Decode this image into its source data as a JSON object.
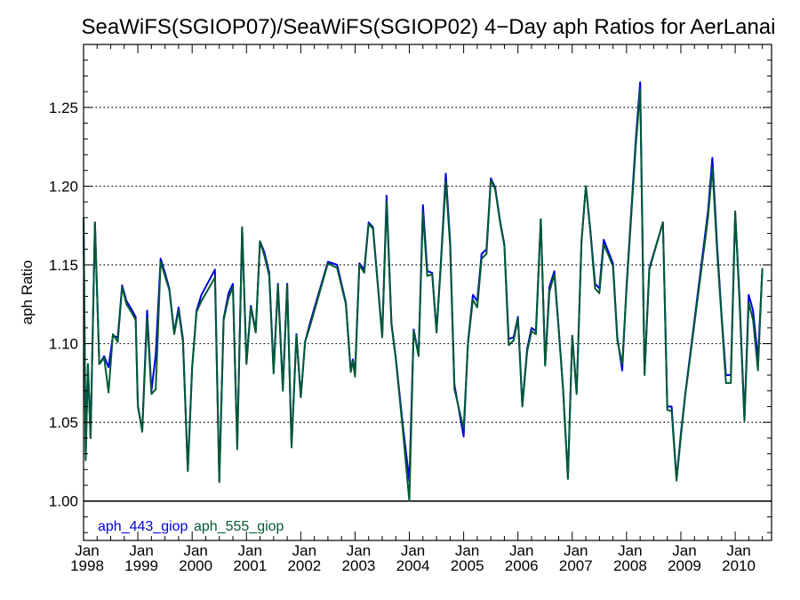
{
  "chart_data": {
    "type": "line",
    "title": "SeaWiFS(SGIOP07)/SeaWiFS(SGIOP02) 4−Day aph Ratios for AerLanai",
    "xlabel": "",
    "ylabel": "aph Ratio",
    "xlim": [
      1998.0,
      2010.67
    ],
    "ylim": [
      0.975,
      1.29
    ],
    "x_ticks": [
      {
        "month": "Jan",
        "year": "1998",
        "x": 1998
      },
      {
        "month": "Jan",
        "year": "1999",
        "x": 1999
      },
      {
        "month": "Jan",
        "year": "2000",
        "x": 2000
      },
      {
        "month": "Jan",
        "year": "2001",
        "x": 2001
      },
      {
        "month": "Jan",
        "year": "2002",
        "x": 2002
      },
      {
        "month": "Jan",
        "year": "2003",
        "x": 2003
      },
      {
        "month": "Jan",
        "year": "2004",
        "x": 2004
      },
      {
        "month": "Jan",
        "year": "2005",
        "x": 2005
      },
      {
        "month": "Jan",
        "year": "2006",
        "x": 2006
      },
      {
        "month": "Jan",
        "year": "2007",
        "x": 2007
      },
      {
        "month": "Jan",
        "year": "2008",
        "x": 2008
      },
      {
        "month": "Jan",
        "year": "2009",
        "x": 2009
      },
      {
        "month": "Jan",
        "year": "2010",
        "x": 2010
      }
    ],
    "y_ticks": [
      "1.00",
      "1.05",
      "1.10",
      "1.15",
      "1.20",
      "1.25"
    ],
    "y_tick_values": [
      1.0,
      1.05,
      1.1,
      1.15,
      1.2,
      1.25
    ],
    "grid": true,
    "reference_line": 1.0,
    "legend_position": "bottom-left",
    "series": [
      {
        "name": "aph_443_giop",
        "color": "#0000e0",
        "points": [
          [
            1998.0,
            1.18
          ],
          [
            1998.04,
            1.03
          ],
          [
            1998.08,
            1.087
          ],
          [
            1998.13,
            1.04
          ],
          [
            1998.21,
            1.177
          ],
          [
            1998.29,
            1.087
          ],
          [
            1998.38,
            1.092
          ],
          [
            1998.46,
            1.085
          ],
          [
            1998.54,
            1.105
          ],
          [
            1998.63,
            1.104
          ],
          [
            1998.71,
            1.137
          ],
          [
            1998.79,
            1.127
          ],
          [
            1998.88,
            1.122
          ],
          [
            1998.96,
            1.117
          ],
          [
            1999.0,
            1.06
          ],
          [
            1999.08,
            1.045
          ],
          [
            1999.17,
            1.121
          ],
          [
            1999.25,
            1.07
          ],
          [
            1999.33,
            1.093
          ],
          [
            1999.42,
            1.154
          ],
          [
            1999.5,
            1.145
          ],
          [
            1999.58,
            1.135
          ],
          [
            1999.67,
            1.107
          ],
          [
            1999.75,
            1.123
          ],
          [
            1999.83,
            1.103
          ],
          [
            1999.92,
            1.02
          ],
          [
            2000.0,
            1.085
          ],
          [
            2000.08,
            1.121
          ],
          [
            2000.17,
            1.131
          ],
          [
            2000.42,
            1.147
          ],
          [
            2000.5,
            1.013
          ],
          [
            2000.58,
            1.116
          ],
          [
            2000.67,
            1.132
          ],
          [
            2000.75,
            1.138
          ],
          [
            2000.83,
            1.035
          ],
          [
            2000.92,
            1.173
          ],
          [
            2001.0,
            1.088
          ],
          [
            2001.08,
            1.124
          ],
          [
            2001.17,
            1.108
          ],
          [
            2001.25,
            1.165
          ],
          [
            2001.33,
            1.158
          ],
          [
            2001.42,
            1.145
          ],
          [
            2001.5,
            1.083
          ],
          [
            2001.58,
            1.138
          ],
          [
            2001.67,
            1.072
          ],
          [
            2001.75,
            1.138
          ],
          [
            2001.83,
            1.035
          ],
          [
            2001.92,
            1.106
          ],
          [
            2002.0,
            1.066
          ],
          [
            2002.08,
            1.101
          ],
          [
            2002.17,
            1.113
          ],
          [
            2002.5,
            1.152
          ],
          [
            2002.67,
            1.15
          ],
          [
            2002.83,
            1.126
          ],
          [
            2002.92,
            1.083
          ],
          [
            2002.96,
            1.09
          ],
          [
            2003.0,
            1.081
          ],
          [
            2003.08,
            1.151
          ],
          [
            2003.17,
            1.147
          ],
          [
            2003.25,
            1.177
          ],
          [
            2003.33,
            1.174
          ],
          [
            2003.5,
            1.105
          ],
          [
            2003.58,
            1.194
          ],
          [
            2003.67,
            1.113
          ],
          [
            2003.75,
            1.091
          ],
          [
            2003.88,
            1.048
          ],
          [
            2004.0,
            1.013
          ],
          [
            2004.08,
            1.109
          ],
          [
            2004.17,
            1.093
          ],
          [
            2004.25,
            1.188
          ],
          [
            2004.33,
            1.146
          ],
          [
            2004.42,
            1.145
          ],
          [
            2004.5,
            1.108
          ],
          [
            2004.58,
            1.152
          ],
          [
            2004.67,
            1.208
          ],
          [
            2004.75,
            1.165
          ],
          [
            2004.83,
            1.074
          ],
          [
            2005.0,
            1.041
          ],
          [
            2005.08,
            1.101
          ],
          [
            2005.17,
            1.131
          ],
          [
            2005.25,
            1.127
          ],
          [
            2005.33,
            1.157
          ],
          [
            2005.42,
            1.16
          ],
          [
            2005.5,
            1.205
          ],
          [
            2005.58,
            1.199
          ],
          [
            2005.67,
            1.178
          ],
          [
            2005.75,
            1.163
          ],
          [
            2005.83,
            1.103
          ],
          [
            2005.92,
            1.104
          ],
          [
            2006.0,
            1.117
          ],
          [
            2006.08,
            1.061
          ],
          [
            2006.17,
            1.097
          ],
          [
            2006.25,
            1.11
          ],
          [
            2006.33,
            1.108
          ],
          [
            2006.42,
            1.179
          ],
          [
            2006.5,
            1.087
          ],
          [
            2006.58,
            1.136
          ],
          [
            2006.67,
            1.146
          ],
          [
            2006.75,
            1.11
          ],
          [
            2006.83,
            1.072
          ],
          [
            2006.92,
            1.015
          ],
          [
            2007.0,
            1.105
          ],
          [
            2007.08,
            1.069
          ],
          [
            2007.17,
            1.165
          ],
          [
            2007.25,
            1.2
          ],
          [
            2007.33,
            1.173
          ],
          [
            2007.42,
            1.138
          ],
          [
            2007.5,
            1.135
          ],
          [
            2007.58,
            1.166
          ],
          [
            2007.67,
            1.158
          ],
          [
            2007.75,
            1.151
          ],
          [
            2007.83,
            1.104
          ],
          [
            2007.92,
            1.083
          ],
          [
            2008.0,
            1.137
          ],
          [
            2008.17,
            1.23
          ],
          [
            2008.25,
            1.266
          ],
          [
            2008.33,
            1.081
          ],
          [
            2008.42,
            1.148
          ],
          [
            2008.67,
            1.177
          ],
          [
            2008.75,
            1.06
          ],
          [
            2008.83,
            1.06
          ],
          [
            2008.92,
            1.014
          ],
          [
            2009.0,
            1.043
          ],
          [
            2009.08,
            1.068
          ],
          [
            2009.5,
            1.184
          ],
          [
            2009.58,
            1.218
          ],
          [
            2009.67,
            1.161
          ],
          [
            2009.75,
            1.118
          ],
          [
            2009.83,
            1.08
          ],
          [
            2009.92,
            1.08
          ],
          [
            2010.0,
            1.183
          ],
          [
            2010.08,
            1.129
          ],
          [
            2010.17,
            1.052
          ],
          [
            2010.25,
            1.131
          ],
          [
            2010.33,
            1.121
          ],
          [
            2010.42,
            1.09
          ],
          [
            2010.5,
            1.147
          ]
        ]
      },
      {
        "name": "aph_555_giop",
        "color": "#005a32",
        "points": [
          [
            1998.0,
            1.18
          ],
          [
            1998.04,
            1.026
          ],
          [
            1998.08,
            1.087
          ],
          [
            1998.13,
            1.04
          ],
          [
            1998.21,
            1.177
          ],
          [
            1998.29,
            1.087
          ],
          [
            1998.38,
            1.091
          ],
          [
            1998.46,
            1.069
          ],
          [
            1998.54,
            1.106
          ],
          [
            1998.63,
            1.101
          ],
          [
            1998.71,
            1.136
          ],
          [
            1998.79,
            1.125
          ],
          [
            1998.88,
            1.12
          ],
          [
            1998.96,
            1.115
          ],
          [
            1999.0,
            1.061
          ],
          [
            1999.08,
            1.044
          ],
          [
            1999.17,
            1.116
          ],
          [
            1999.25,
            1.068
          ],
          [
            1999.33,
            1.071
          ],
          [
            1999.42,
            1.152
          ],
          [
            1999.5,
            1.143
          ],
          [
            1999.58,
            1.134
          ],
          [
            1999.67,
            1.106
          ],
          [
            1999.75,
            1.121
          ],
          [
            1999.83,
            1.101
          ],
          [
            1999.92,
            1.019
          ],
          [
            2000.0,
            1.085
          ],
          [
            2000.08,
            1.12
          ],
          [
            2000.17,
            1.127
          ],
          [
            2000.42,
            1.142
          ],
          [
            2000.5,
            1.012
          ],
          [
            2000.58,
            1.115
          ],
          [
            2000.67,
            1.129
          ],
          [
            2000.75,
            1.136
          ],
          [
            2000.83,
            1.033
          ],
          [
            2000.92,
            1.174
          ],
          [
            2001.0,
            1.087
          ],
          [
            2001.08,
            1.123
          ],
          [
            2001.17,
            1.107
          ],
          [
            2001.25,
            1.165
          ],
          [
            2001.33,
            1.156
          ],
          [
            2001.42,
            1.143
          ],
          [
            2001.5,
            1.081
          ],
          [
            2001.58,
            1.137
          ],
          [
            2001.67,
            1.07
          ],
          [
            2001.75,
            1.137
          ],
          [
            2001.83,
            1.034
          ],
          [
            2001.92,
            1.105
          ],
          [
            2002.0,
            1.066
          ],
          [
            2002.08,
            1.101
          ],
          [
            2002.17,
            1.111
          ],
          [
            2002.5,
            1.151
          ],
          [
            2002.67,
            1.148
          ],
          [
            2002.83,
            1.125
          ],
          [
            2002.92,
            1.082
          ],
          [
            2002.96,
            1.089
          ],
          [
            2003.0,
            1.079
          ],
          [
            2003.08,
            1.15
          ],
          [
            2003.17,
            1.145
          ],
          [
            2003.25,
            1.176
          ],
          [
            2003.33,
            1.173
          ],
          [
            2003.5,
            1.104
          ],
          [
            2003.58,
            1.19
          ],
          [
            2003.67,
            1.112
          ],
          [
            2003.75,
            1.09
          ],
          [
            2003.88,
            1.045
          ],
          [
            2004.0,
            1.0
          ],
          [
            2004.08,
            1.108
          ],
          [
            2004.17,
            1.092
          ],
          [
            2004.25,
            1.183
          ],
          [
            2004.33,
            1.143
          ],
          [
            2004.42,
            1.144
          ],
          [
            2004.5,
            1.107
          ],
          [
            2004.58,
            1.15
          ],
          [
            2004.67,
            1.203
          ],
          [
            2004.75,
            1.162
          ],
          [
            2004.83,
            1.071
          ],
          [
            2005.0,
            1.046
          ],
          [
            2005.08,
            1.1
          ],
          [
            2005.17,
            1.128
          ],
          [
            2005.25,
            1.123
          ],
          [
            2005.33,
            1.154
          ],
          [
            2005.42,
            1.157
          ],
          [
            2005.5,
            1.204
          ],
          [
            2005.58,
            1.198
          ],
          [
            2005.67,
            1.177
          ],
          [
            2005.75,
            1.162
          ],
          [
            2005.83,
            1.099
          ],
          [
            2005.92,
            1.102
          ],
          [
            2006.0,
            1.116
          ],
          [
            2006.08,
            1.06
          ],
          [
            2006.17,
            1.095
          ],
          [
            2006.25,
            1.108
          ],
          [
            2006.33,
            1.106
          ],
          [
            2006.42,
            1.179
          ],
          [
            2006.5,
            1.086
          ],
          [
            2006.58,
            1.133
          ],
          [
            2006.67,
            1.144
          ],
          [
            2006.75,
            1.109
          ],
          [
            2006.83,
            1.071
          ],
          [
            2006.92,
            1.014
          ],
          [
            2007.0,
            1.105
          ],
          [
            2007.08,
            1.068
          ],
          [
            2007.17,
            1.165
          ],
          [
            2007.25,
            1.2
          ],
          [
            2007.33,
            1.172
          ],
          [
            2007.42,
            1.135
          ],
          [
            2007.5,
            1.132
          ],
          [
            2007.58,
            1.163
          ],
          [
            2007.67,
            1.156
          ],
          [
            2007.75,
            1.149
          ],
          [
            2007.83,
            1.102
          ],
          [
            2007.92,
            1.087
          ],
          [
            2008.0,
            1.135
          ],
          [
            2008.17,
            1.226
          ],
          [
            2008.25,
            1.261
          ],
          [
            2008.33,
            1.08
          ],
          [
            2008.42,
            1.147
          ],
          [
            2008.67,
            1.177
          ],
          [
            2008.75,
            1.058
          ],
          [
            2008.83,
            1.057
          ],
          [
            2008.92,
            1.013
          ],
          [
            2009.0,
            1.041
          ],
          [
            2009.08,
            1.067
          ],
          [
            2009.5,
            1.18
          ],
          [
            2009.58,
            1.212
          ],
          [
            2009.67,
            1.157
          ],
          [
            2009.75,
            1.116
          ],
          [
            2009.83,
            1.075
          ],
          [
            2009.92,
            1.075
          ],
          [
            2010.0,
            1.184
          ],
          [
            2010.08,
            1.126
          ],
          [
            2010.17,
            1.051
          ],
          [
            2010.25,
            1.126
          ],
          [
            2010.33,
            1.115
          ],
          [
            2010.42,
            1.083
          ],
          [
            2010.5,
            1.148
          ]
        ]
      }
    ]
  }
}
